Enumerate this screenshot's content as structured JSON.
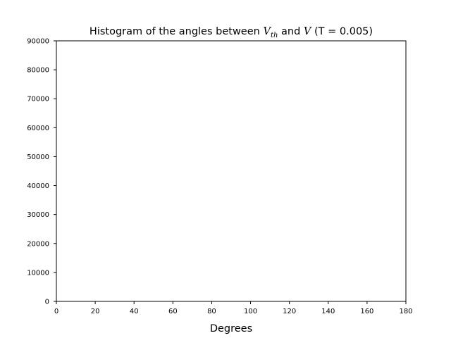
{
  "chart_data": {
    "type": "bar",
    "title": {
      "before": "Histogram of the angles between ",
      "var1": "V",
      "var1_sub": "th",
      "middle": " and ",
      "var2": "V",
      "after": " (T = 0.005)"
    },
    "xlabel": "Degrees",
    "ylabel": "",
    "xlim": [
      0,
      180
    ],
    "ylim": [
      0,
      90000
    ],
    "xticks": [
      0,
      20,
      40,
      60,
      80,
      100,
      120,
      140,
      160,
      180
    ],
    "yticks": [
      0,
      10000,
      20000,
      30000,
      40000,
      50000,
      60000,
      70000,
      80000,
      90000
    ],
    "grid": false,
    "series": [
      {
        "values": []
      }
    ],
    "colors": {
      "axes": "#000000",
      "background": "#ffffff"
    }
  }
}
